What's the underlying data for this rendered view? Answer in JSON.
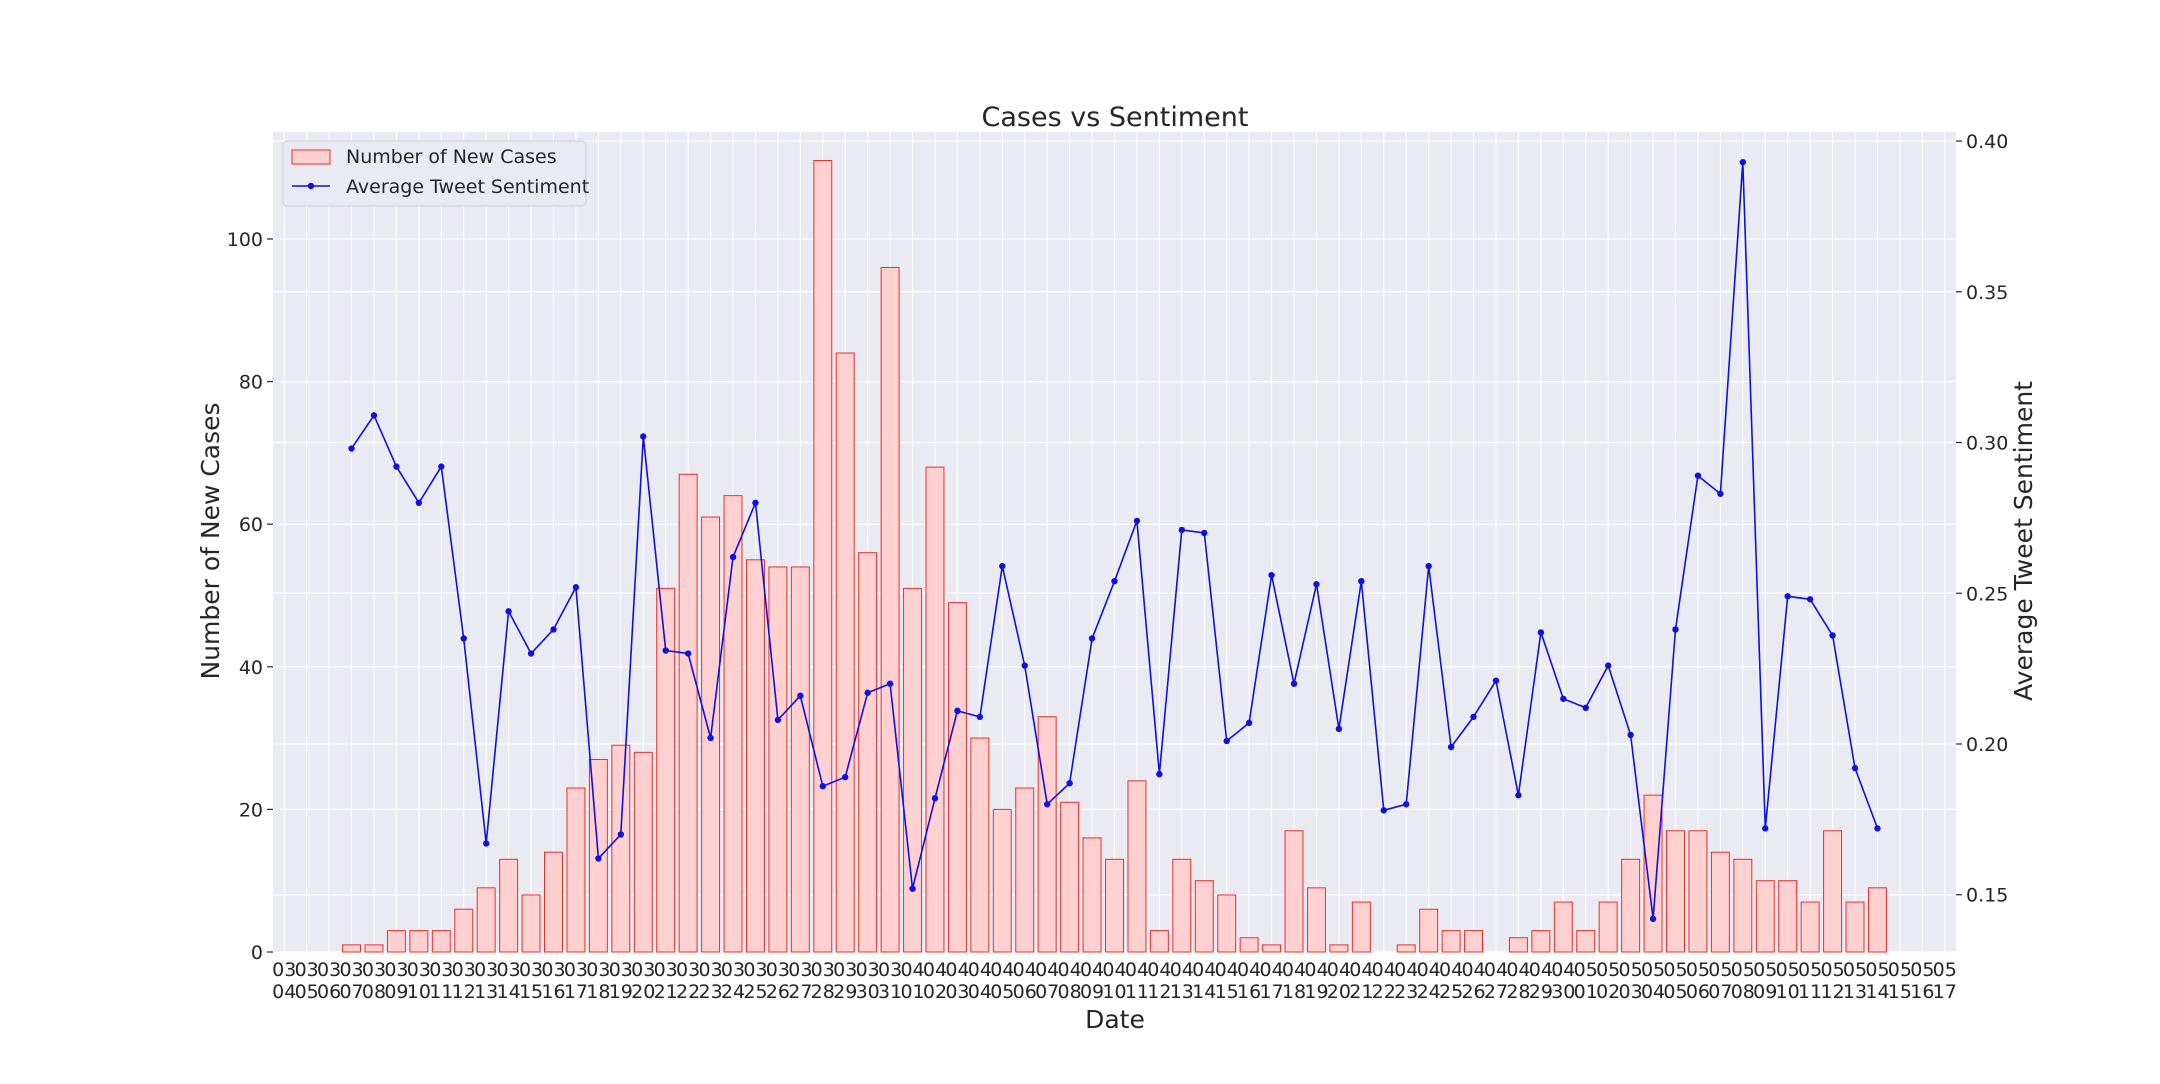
{
  "chart_data": {
    "type": "bar",
    "title": "Cases vs Sentiment",
    "xlabel": "Date",
    "ylabel": "Number of New Cases",
    "ylabel_right": "Average Tweet Sentiment",
    "grid": true,
    "legend_position": "upper-left",
    "colors": {
      "background": "#eaeaf2",
      "grid": "#ffffff",
      "bar_fill": "#ffd0d0",
      "bar_edge": "#e8302a",
      "line": "#1010e0"
    },
    "categories": [
      [
        "03",
        "04"
      ],
      [
        "03",
        "05"
      ],
      [
        "03",
        "06"
      ],
      [
        "03",
        "07"
      ],
      [
        "03",
        "08"
      ],
      [
        "03",
        "09"
      ],
      [
        "03",
        "10"
      ],
      [
        "03",
        "11"
      ],
      [
        "03",
        "12"
      ],
      [
        "03",
        "13"
      ],
      [
        "03",
        "14"
      ],
      [
        "03",
        "15"
      ],
      [
        "03",
        "16"
      ],
      [
        "03",
        "17"
      ],
      [
        "03",
        "18"
      ],
      [
        "03",
        "19"
      ],
      [
        "03",
        "20"
      ],
      [
        "03",
        "21"
      ],
      [
        "03",
        "22"
      ],
      [
        "03",
        "23"
      ],
      [
        "03",
        "24"
      ],
      [
        "03",
        "25"
      ],
      [
        "03",
        "26"
      ],
      [
        "03",
        "27"
      ],
      [
        "03",
        "28"
      ],
      [
        "03",
        "29"
      ],
      [
        "03",
        "30"
      ],
      [
        "03",
        "31"
      ],
      [
        "04",
        "01"
      ],
      [
        "04",
        "02"
      ],
      [
        "04",
        "03"
      ],
      [
        "04",
        "04"
      ],
      [
        "04",
        "05"
      ],
      [
        "04",
        "06"
      ],
      [
        "04",
        "07"
      ],
      [
        "04",
        "08"
      ],
      [
        "04",
        "09"
      ],
      [
        "04",
        "10"
      ],
      [
        "04",
        "11"
      ],
      [
        "04",
        "12"
      ],
      [
        "04",
        "13"
      ],
      [
        "04",
        "14"
      ],
      [
        "04",
        "15"
      ],
      [
        "04",
        "16"
      ],
      [
        "04",
        "17"
      ],
      [
        "04",
        "18"
      ],
      [
        "04",
        "19"
      ],
      [
        "04",
        "20"
      ],
      [
        "04",
        "21"
      ],
      [
        "04",
        "22"
      ],
      [
        "04",
        "23"
      ],
      [
        "04",
        "24"
      ],
      [
        "04",
        "25"
      ],
      [
        "04",
        "26"
      ],
      [
        "04",
        "27"
      ],
      [
        "04",
        "28"
      ],
      [
        "04",
        "29"
      ],
      [
        "04",
        "30"
      ],
      [
        "05",
        "01"
      ],
      [
        "05",
        "02"
      ],
      [
        "05",
        "03"
      ],
      [
        "05",
        "04"
      ],
      [
        "05",
        "05"
      ],
      [
        "05",
        "06"
      ],
      [
        "05",
        "07"
      ],
      [
        "05",
        "08"
      ],
      [
        "05",
        "09"
      ],
      [
        "05",
        "10"
      ],
      [
        "05",
        "11"
      ],
      [
        "05",
        "12"
      ],
      [
        "05",
        "13"
      ],
      [
        "05",
        "14"
      ],
      [
        "05",
        "15"
      ],
      [
        "05",
        "16"
      ],
      [
        "05",
        "17"
      ]
    ],
    "ylim": [
      0,
      115
    ],
    "yticks": [
      0,
      20,
      40,
      60,
      80,
      100
    ],
    "ylim_right": [
      0.131,
      0.403
    ],
    "yticks_right": [
      "0.15",
      "0.20",
      "0.25",
      "0.30",
      "0.35",
      "0.40"
    ],
    "series": [
      {
        "name": "Number of New Cases",
        "kind": "bar",
        "values": [
          0,
          0,
          0,
          1,
          1,
          3,
          3,
          3,
          6,
          9,
          13,
          8,
          14,
          23,
          27,
          29,
          28,
          51,
          67,
          61,
          64,
          55,
          54,
          54,
          111,
          84,
          56,
          96,
          51,
          68,
          49,
          30,
          20,
          23,
          33,
          21,
          16,
          13,
          24,
          3,
          13,
          10,
          8,
          2,
          1,
          17,
          9,
          1,
          7,
          0,
          1,
          6,
          3,
          3,
          0,
          2,
          3,
          7,
          3,
          7,
          13,
          22,
          17,
          17,
          14,
          13,
          10,
          10,
          7,
          17,
          7,
          9,
          0,
          0,
          0
        ]
      },
      {
        "name": "Average Tweet Sentiment",
        "kind": "line",
        "axis": "right",
        "values": [
          null,
          null,
          null,
          0.298,
          0.309,
          0.292,
          0.28,
          0.292,
          0.235,
          0.167,
          0.244,
          0.23,
          0.238,
          0.252,
          0.162,
          0.17,
          0.302,
          0.231,
          0.23,
          0.202,
          0.262,
          0.28,
          0.208,
          0.216,
          0.186,
          0.189,
          0.217,
          0.22,
          0.152,
          0.182,
          0.211,
          0.209,
          0.259,
          0.226,
          0.18,
          0.187,
          0.235,
          0.254,
          0.274,
          0.19,
          0.271,
          0.27,
          0.201,
          0.207,
          0.256,
          0.22,
          0.253,
          0.205,
          0.254,
          0.178,
          0.18,
          0.259,
          0.199,
          0.209,
          0.221,
          0.183,
          0.237,
          0.215,
          0.212,
          0.226,
          0.203,
          0.142,
          0.238,
          0.289,
          0.283,
          0.393,
          0.172,
          0.249,
          0.248,
          0.236,
          0.192,
          0.172,
          null,
          null,
          null
        ]
      }
    ]
  }
}
